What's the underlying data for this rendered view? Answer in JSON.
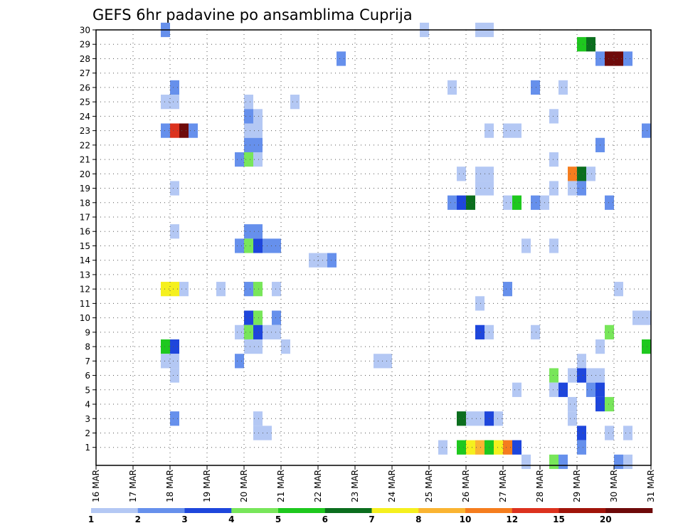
{
  "chart_data": {
    "type": "heatmap",
    "title": "GEFS 6hr padavine po ansamblima Cuprija",
    "x_labels": [
      "16 MAR",
      "17 MAR",
      "18 MAR",
      "19 MAR",
      "20 MAR",
      "21 MAR",
      "22 MAR",
      "23 MAR",
      "24 MAR",
      "25 MAR",
      "26 MAR",
      "27 MAR",
      "28 MAR",
      "29 MAR",
      "30 MAR",
      "31 MAR"
    ],
    "y_labels": [
      "1",
      "2",
      "3",
      "4",
      "5",
      "6",
      "7",
      "8",
      "9",
      "10",
      "11",
      "12",
      "13",
      "14",
      "15",
      "16",
      "17",
      "18",
      "19",
      "20",
      "21",
      "22",
      "23",
      "24",
      "25",
      "26",
      "27",
      "28",
      "29",
      "30"
    ],
    "steps_per_day": 4,
    "legend": {
      "labels": [
        "1",
        "2",
        "3",
        "4",
        "5",
        "6",
        "7",
        "8",
        "10",
        "12",
        "15",
        "20"
      ],
      "colors": [
        "#b4c8f4",
        "#6690ec",
        "#1e46dc",
        "#78e65a",
        "#1ec81e",
        "#0b6e1e",
        "#f5f01e",
        "#fab432",
        "#f57d1e",
        "#dc321e",
        "#a0140a",
        "#6e0a0a"
      ]
    },
    "cells": [
      {
        "t": 7,
        "m": 30,
        "c": 2
      },
      {
        "t": 35,
        "m": 30,
        "c": 1
      },
      {
        "t": 41,
        "m": 30,
        "c": 1
      },
      {
        "t": 42,
        "m": 30,
        "c": 1
      },
      {
        "t": 52,
        "m": 29,
        "c": 5
      },
      {
        "t": 53,
        "m": 29,
        "c": 6
      },
      {
        "t": 26,
        "m": 28,
        "c": 2
      },
      {
        "t": 54,
        "m": 28,
        "c": 2
      },
      {
        "t": 55,
        "m": 28,
        "c": 12
      },
      {
        "t": 56,
        "m": 28,
        "c": 12
      },
      {
        "t": 57,
        "m": 28,
        "c": 2
      },
      {
        "t": 8,
        "m": 26,
        "c": 2
      },
      {
        "t": 38,
        "m": 26,
        "c": 1
      },
      {
        "t": 47,
        "m": 26,
        "c": 2
      },
      {
        "t": 50,
        "m": 26,
        "c": 1
      },
      {
        "t": 7,
        "m": 25,
        "c": 1
      },
      {
        "t": 8,
        "m": 25,
        "c": 1
      },
      {
        "t": 16,
        "m": 25,
        "c": 1
      },
      {
        "t": 21,
        "m": 25,
        "c": 1
      },
      {
        "t": 16,
        "m": 24,
        "c": 2
      },
      {
        "t": 17,
        "m": 24,
        "c": 1
      },
      {
        "t": 49,
        "m": 24,
        "c": 1
      },
      {
        "t": 7,
        "m": 23,
        "c": 2
      },
      {
        "t": 8,
        "m": 23,
        "c": 10
      },
      {
        "t": 9,
        "m": 23,
        "c": 12
      },
      {
        "t": 10,
        "m": 23,
        "c": 2
      },
      {
        "t": 16,
        "m": 23,
        "c": 1
      },
      {
        "t": 17,
        "m": 23,
        "c": 1
      },
      {
        "t": 42,
        "m": 23,
        "c": 1
      },
      {
        "t": 44,
        "m": 23,
        "c": 1
      },
      {
        "t": 45,
        "m": 23,
        "c": 1
      },
      {
        "t": 59,
        "m": 23,
        "c": 2
      },
      {
        "t": 16,
        "m": 22,
        "c": 2
      },
      {
        "t": 17,
        "m": 22,
        "c": 2
      },
      {
        "t": 54,
        "m": 22,
        "c": 2
      },
      {
        "t": 15,
        "m": 21,
        "c": 2
      },
      {
        "t": 16,
        "m": 21,
        "c": 4
      },
      {
        "t": 17,
        "m": 21,
        "c": 1
      },
      {
        "t": 49,
        "m": 21,
        "c": 1
      },
      {
        "t": 39,
        "m": 20,
        "c": 1
      },
      {
        "t": 41,
        "m": 20,
        "c": 1
      },
      {
        "t": 42,
        "m": 20,
        "c": 1
      },
      {
        "t": 51,
        "m": 20,
        "c": 9
      },
      {
        "t": 52,
        "m": 20,
        "c": 6
      },
      {
        "t": 53,
        "m": 20,
        "c": 1
      },
      {
        "t": 8,
        "m": 19,
        "c": 1
      },
      {
        "t": 41,
        "m": 19,
        "c": 1
      },
      {
        "t": 42,
        "m": 19,
        "c": 1
      },
      {
        "t": 49,
        "m": 19,
        "c": 1
      },
      {
        "t": 51,
        "m": 19,
        "c": 1
      },
      {
        "t": 52,
        "m": 19,
        "c": 2
      },
      {
        "t": 38,
        "m": 18,
        "c": 2
      },
      {
        "t": 39,
        "m": 18,
        "c": 3
      },
      {
        "t": 40,
        "m": 18,
        "c": 6
      },
      {
        "t": 44,
        "m": 18,
        "c": 1
      },
      {
        "t": 45,
        "m": 18,
        "c": 5
      },
      {
        "t": 47,
        "m": 18,
        "c": 2
      },
      {
        "t": 48,
        "m": 18,
        "c": 1
      },
      {
        "t": 55,
        "m": 18,
        "c": 2
      },
      {
        "t": 8,
        "m": 16,
        "c": 1
      },
      {
        "t": 16,
        "m": 16,
        "c": 2
      },
      {
        "t": 17,
        "m": 16,
        "c": 2
      },
      {
        "t": 15,
        "m": 15,
        "c": 2
      },
      {
        "t": 16,
        "m": 15,
        "c": 4
      },
      {
        "t": 17,
        "m": 15,
        "c": 3
      },
      {
        "t": 18,
        "m": 15,
        "c": 2
      },
      {
        "t": 19,
        "m": 15,
        "c": 2
      },
      {
        "t": 46,
        "m": 15,
        "c": 1
      },
      {
        "t": 49,
        "m": 15,
        "c": 1
      },
      {
        "t": 23,
        "m": 14,
        "c": 1
      },
      {
        "t": 24,
        "m": 14,
        "c": 1
      },
      {
        "t": 25,
        "m": 14,
        "c": 2
      },
      {
        "t": 7,
        "m": 12,
        "c": 7
      },
      {
        "t": 8,
        "m": 12,
        "c": 7
      },
      {
        "t": 9,
        "m": 12,
        "c": 1
      },
      {
        "t": 13,
        "m": 12,
        "c": 1
      },
      {
        "t": 16,
        "m": 12,
        "c": 2
      },
      {
        "t": 17,
        "m": 12,
        "c": 4
      },
      {
        "t": 19,
        "m": 12,
        "c": 1
      },
      {
        "t": 44,
        "m": 12,
        "c": 2
      },
      {
        "t": 56,
        "m": 12,
        "c": 1
      },
      {
        "t": 41,
        "m": 11,
        "c": 1
      },
      {
        "t": 16,
        "m": 10,
        "c": 3
      },
      {
        "t": 17,
        "m": 10,
        "c": 4
      },
      {
        "t": 19,
        "m": 10,
        "c": 2
      },
      {
        "t": 58,
        "m": 10,
        "c": 1
      },
      {
        "t": 59,
        "m": 10,
        "c": 1
      },
      {
        "t": 15,
        "m": 9,
        "c": 1
      },
      {
        "t": 16,
        "m": 9,
        "c": 4
      },
      {
        "t": 17,
        "m": 9,
        "c": 3
      },
      {
        "t": 18,
        "m": 9,
        "c": 1
      },
      {
        "t": 19,
        "m": 9,
        "c": 1
      },
      {
        "t": 41,
        "m": 9,
        "c": 3
      },
      {
        "t": 42,
        "m": 9,
        "c": 1
      },
      {
        "t": 47,
        "m": 9,
        "c": 1
      },
      {
        "t": 55,
        "m": 9,
        "c": 4
      },
      {
        "t": 7,
        "m": 8,
        "c": 5
      },
      {
        "t": 8,
        "m": 8,
        "c": 3
      },
      {
        "t": 16,
        "m": 8,
        "c": 1
      },
      {
        "t": 17,
        "m": 8,
        "c": 1
      },
      {
        "t": 20,
        "m": 8,
        "c": 1
      },
      {
        "t": 54,
        "m": 8,
        "c": 1
      },
      {
        "t": 59,
        "m": 8,
        "c": 5
      },
      {
        "t": 7,
        "m": 7,
        "c": 1
      },
      {
        "t": 8,
        "m": 7,
        "c": 1
      },
      {
        "t": 15,
        "m": 7,
        "c": 2
      },
      {
        "t": 30,
        "m": 7,
        "c": 1
      },
      {
        "t": 31,
        "m": 7,
        "c": 1
      },
      {
        "t": 52,
        "m": 7,
        "c": 1
      },
      {
        "t": 8,
        "m": 6,
        "c": 1
      },
      {
        "t": 49,
        "m": 6,
        "c": 4
      },
      {
        "t": 51,
        "m": 6,
        "c": 1
      },
      {
        "t": 52,
        "m": 6,
        "c": 3
      },
      {
        "t": 53,
        "m": 6,
        "c": 1
      },
      {
        "t": 54,
        "m": 6,
        "c": 1
      },
      {
        "t": 45,
        "m": 5,
        "c": 1
      },
      {
        "t": 49,
        "m": 5,
        "c": 1
      },
      {
        "t": 50,
        "m": 5,
        "c": 3
      },
      {
        "t": 53,
        "m": 5,
        "c": 2
      },
      {
        "t": 54,
        "m": 5,
        "c": 3
      },
      {
        "t": 51,
        "m": 4,
        "c": 1
      },
      {
        "t": 54,
        "m": 4,
        "c": 3
      },
      {
        "t": 55,
        "m": 4,
        "c": 4
      },
      {
        "t": 8,
        "m": 3,
        "c": 2
      },
      {
        "t": 17,
        "m": 3,
        "c": 1
      },
      {
        "t": 39,
        "m": 3,
        "c": 6
      },
      {
        "t": 40,
        "m": 3,
        "c": 1
      },
      {
        "t": 41,
        "m": 3,
        "c": 1
      },
      {
        "t": 42,
        "m": 3,
        "c": 3
      },
      {
        "t": 43,
        "m": 3,
        "c": 1
      },
      {
        "t": 51,
        "m": 3,
        "c": 1
      },
      {
        "t": 17,
        "m": 2,
        "c": 1
      },
      {
        "t": 18,
        "m": 2,
        "c": 1
      },
      {
        "t": 52,
        "m": 2,
        "c": 3
      },
      {
        "t": 55,
        "m": 2,
        "c": 1
      },
      {
        "t": 57,
        "m": 2,
        "c": 1
      },
      {
        "t": 37,
        "m": 1,
        "c": 1
      },
      {
        "t": 39,
        "m": 1,
        "c": 5
      },
      {
        "t": 40,
        "m": 1,
        "c": 7
      },
      {
        "t": 41,
        "m": 1,
        "c": 8
      },
      {
        "t": 42,
        "m": 1,
        "c": 5
      },
      {
        "t": 43,
        "m": 1,
        "c": 7
      },
      {
        "t": 44,
        "m": 1,
        "c": 9
      },
      {
        "t": 45,
        "m": 1,
        "c": 3
      },
      {
        "t": 52,
        "m": 1,
        "c": 2
      },
      {
        "t": 46,
        "m": 0,
        "c": 1
      },
      {
        "t": 49,
        "m": 0,
        "c": 4
      },
      {
        "t": 50,
        "m": 0,
        "c": 2
      },
      {
        "t": 56,
        "m": 0,
        "c": 2
      },
      {
        "t": 57,
        "m": 0,
        "c": 1
      }
    ]
  }
}
